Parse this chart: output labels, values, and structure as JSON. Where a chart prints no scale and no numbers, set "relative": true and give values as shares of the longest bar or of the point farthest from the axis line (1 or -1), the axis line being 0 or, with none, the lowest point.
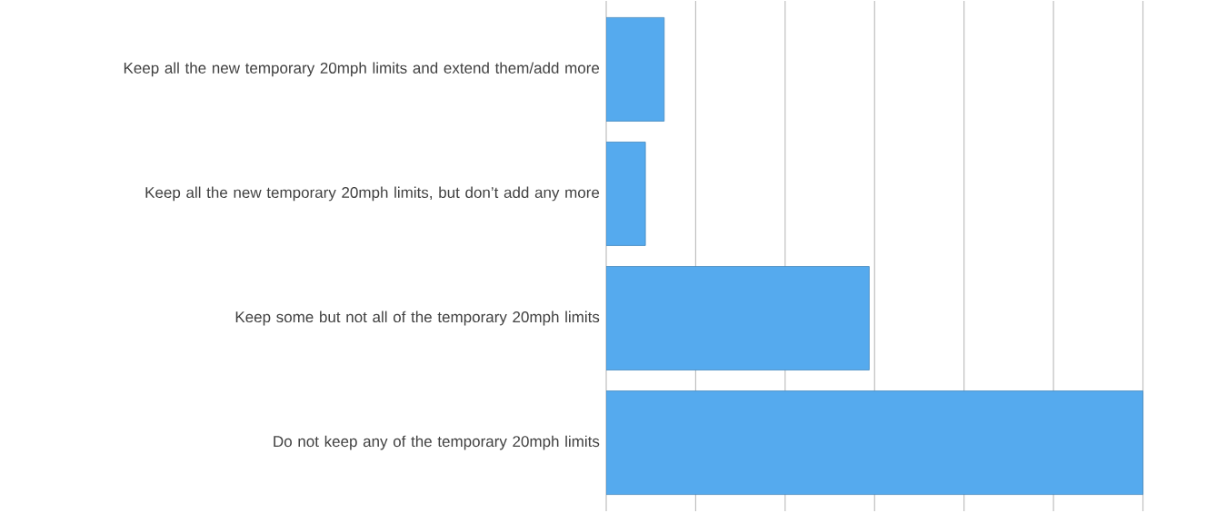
{
  "chart_data": {
    "type": "bar",
    "orientation": "horizontal",
    "relative": true,
    "grid": "x",
    "color": "#55aaee",
    "categories": [
      "Keep all the new temporary 20mph limits and extend them/add more",
      "Keep all the new temporary 20mph limits, but don’t add any more",
      "Keep some but not all of the temporary 20mph limits",
      "Do not keep any of the temporary 20mph limits"
    ],
    "values": [
      0.108,
      0.073,
      0.49,
      1
    ]
  }
}
